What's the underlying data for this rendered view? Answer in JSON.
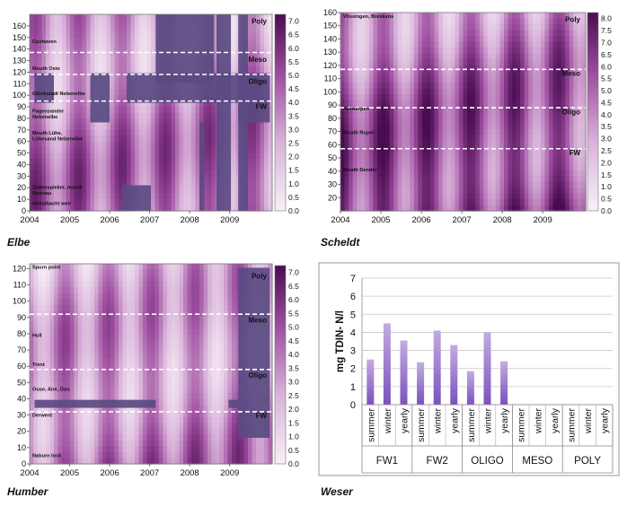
{
  "chart_data": [
    {
      "id": "elbe",
      "type": "heatmap",
      "caption": "Elbe",
      "x_ticks": [
        "2004",
        "2005",
        "2006",
        "2007",
        "2008",
        "2009"
      ],
      "y_ticks": [
        0,
        10,
        20,
        30,
        40,
        50,
        60,
        70,
        80,
        90,
        100,
        110,
        120,
        130,
        140,
        150,
        160
      ],
      "ylim": [
        0,
        170
      ],
      "colorbar": {
        "ticks": [
          "0.0",
          "0.5",
          "1.0",
          "1.5",
          "2.0",
          "2.5",
          "3.0",
          "3.5",
          "4.0",
          "4.5",
          "5.0",
          "5.5",
          "6.0",
          "6.5",
          "7.0"
        ],
        "low_color": "#f3eaf5",
        "high_color": "#4e0f55"
      },
      "zone_boundaries": [
        137,
        118,
        95
      ],
      "zones": [
        {
          "label": "Poly",
          "km": 162
        },
        {
          "label": "Meso",
          "km": 129
        },
        {
          "label": "Oligo",
          "km": 110
        },
        {
          "label": "FW",
          "km": 88
        }
      ],
      "stations": [
        {
          "label": "Cuxhaven",
          "km": 145
        },
        {
          "label": "Mouth Oste",
          "km": 122
        },
        {
          "label": "Glückstadt Nebenelbe",
          "km": 100
        },
        {
          "label": "Pagensander",
          "km": 85
        },
        {
          "label": "Nebenelbe",
          "km": 80
        },
        {
          "label": "Mouth Lühe,",
          "km": 66
        },
        {
          "label": "Lühesand Nebenelbe",
          "km": 61
        },
        {
          "label": "Zollenspieker, mouth",
          "km": 19
        },
        {
          "label": "Ilmenau",
          "km": 14
        },
        {
          "label": "Geesthacht weir",
          "km": 5
        }
      ],
      "annotations": []
    },
    {
      "id": "scheldt",
      "type": "heatmap",
      "caption": "Scheldt",
      "x_ticks": [
        "2004",
        "2005",
        "2006",
        "2007",
        "2008",
        "2009"
      ],
      "y_ticks": [
        20,
        30,
        40,
        50,
        60,
        70,
        80,
        90,
        100,
        110,
        120,
        130,
        140,
        150,
        160
      ],
      "ylim": [
        10,
        160
      ],
      "colorbar": {
        "ticks": [
          "0.0",
          "0.5",
          "1.0",
          "1.5",
          "2.0",
          "2.5",
          "3.0",
          "3.5",
          "4.0",
          "4.5",
          "5.0",
          "5.5",
          "6.0",
          "6.5",
          "7.0",
          "7.5",
          "8.0"
        ],
        "low_color": "#f3eaf5",
        "high_color": "#4e0f55"
      },
      "zone_boundaries": [
        117,
        88,
        57
      ],
      "zones": [
        {
          "label": "Poly",
          "km": 153
        },
        {
          "label": "Meso",
          "km": 112
        },
        {
          "label": "Oligo",
          "km": 83
        },
        {
          "label": "FW",
          "km": 52
        }
      ],
      "stations": [
        {
          "label": "Vlissingen, Breskens",
          "km": 156
        },
        {
          "label": "Antwerpen",
          "km": 86
        },
        {
          "label": "Mouth Rupel",
          "km": 68
        },
        {
          "label": "Mouth Dender",
          "km": 40
        }
      ],
      "annotations": []
    },
    {
      "id": "humber",
      "type": "heatmap",
      "caption": "Humber",
      "x_ticks": [
        "2004",
        "2005",
        "2006",
        "2007",
        "2008",
        "2009"
      ],
      "y_ticks": [
        0,
        10,
        20,
        30,
        40,
        50,
        60,
        70,
        80,
        90,
        100,
        110,
        120
      ],
      "ylim": [
        0,
        123
      ],
      "colorbar": {
        "ticks": [
          "0.0",
          "0.5",
          "1.0",
          "1.5",
          "2.0",
          "2.5",
          "3.0",
          "3.5",
          "4.0",
          "4.5",
          "5.0",
          "5.5",
          "6.0",
          "6.5",
          "7.0"
        ],
        "low_color": "#f3eaf5",
        "high_color": "#4e0f55"
      },
      "zone_boundaries": [
        92,
        58,
        32
      ],
      "zones": [
        {
          "label": "Poly",
          "km": 114
        },
        {
          "label": "Meso",
          "km": 87
        },
        {
          "label": "Oligo",
          "km": 53
        },
        {
          "label": "FW",
          "km": 28
        }
      ],
      "stations": [
        {
          "label": "Spurn point",
          "km": 120
        },
        {
          "label": "Hull",
          "km": 78
        },
        {
          "label": "Trent",
          "km": 60
        },
        {
          "label": "Ouse, Aire, Don",
          "km": 45
        },
        {
          "label": "Derwent",
          "km": 29
        },
        {
          "label": "Naburn lock",
          "km": 4
        }
      ],
      "annotations": []
    },
    {
      "id": "weser",
      "type": "bar",
      "caption": "Weser",
      "ylabel": "mg TDIN- N/l",
      "ylim": [
        0,
        7
      ],
      "y_ticks": [
        0,
        1,
        2,
        3,
        4,
        5,
        6,
        7
      ],
      "groups": [
        "FW1",
        "FW2",
        "OLIGO",
        "MESO",
        "POLY"
      ],
      "categories": [
        "summer",
        "winter",
        "yearly",
        "summer",
        "winter",
        "yearly",
        "summer",
        "winter",
        "yearly",
        "summer",
        "winter",
        "yearly",
        "summer",
        "winter",
        "yearly"
      ],
      "values": [
        2.5,
        4.5,
        3.55,
        2.35,
        4.1,
        3.3,
        1.85,
        4.0,
        2.4,
        null,
        null,
        null,
        null,
        null,
        null
      ],
      "grid": true,
      "colors": {
        "bar_top": "#b9a2dc",
        "bar_bottom": "#7d52c1"
      }
    }
  ]
}
